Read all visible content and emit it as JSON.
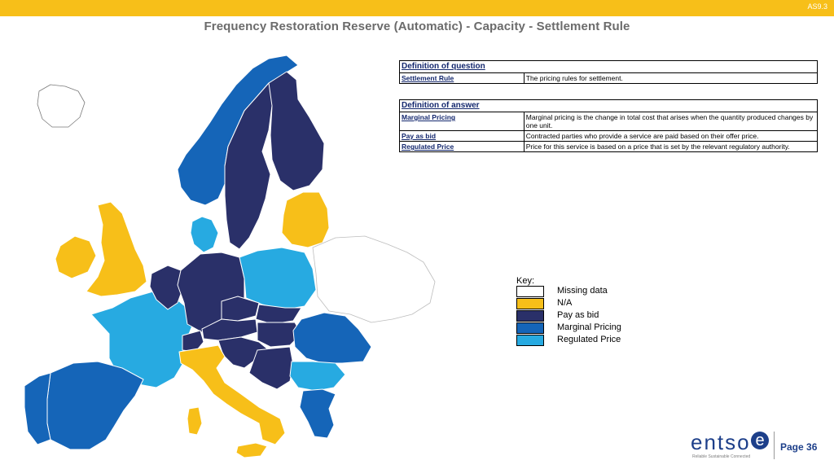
{
  "header": {
    "slide_code": "AS9.3",
    "title": "Frequency Restoration Reserve (Automatic) - Capacity - Settlement Rule"
  },
  "colors": {
    "accent_bar": "#f7bf19",
    "missing_data": "#ffffff",
    "na": "#f7bf19",
    "pay_as_bid": "#2a3069",
    "marginal_pricing": "#1565b8",
    "regulated_price": "#27aae1"
  },
  "question_table": {
    "heading": "Definition of question",
    "rows": [
      {
        "term": "Settlement Rule",
        "description": "The pricing rules for settlement."
      }
    ]
  },
  "answer_table": {
    "heading": "Definition of answer",
    "rows": [
      {
        "term": "Marginal Pricing",
        "description": "Marginal pricing is the change in total cost that arises when the quantity produced changes by one unit."
      },
      {
        "term": "Pay as bid",
        "description": "Contracted parties who provide a service are paid based on their offer price."
      },
      {
        "term": "Regulated Price",
        "description": "Price for this service is based on a price that is set by the relevant regulatory authority."
      }
    ]
  },
  "key": {
    "title": "Key:",
    "items": [
      {
        "label": "Missing data",
        "color_key": "missing_data"
      },
      {
        "label": "N/A",
        "color_key": "na"
      },
      {
        "label": "Pay as bid",
        "color_key": "pay_as_bid"
      },
      {
        "label": "Marginal Pricing",
        "color_key": "marginal_pricing"
      },
      {
        "label": "Regulated Price",
        "color_key": "regulated_price"
      }
    ]
  },
  "map_regions": [
    {
      "name": "iceland",
      "category": "missing_data"
    },
    {
      "name": "norway",
      "category": "marginal_pricing"
    },
    {
      "name": "sweden",
      "category": "pay_as_bid"
    },
    {
      "name": "finland",
      "category": "pay_as_bid"
    },
    {
      "name": "denmark",
      "category": "regulated_price"
    },
    {
      "name": "estonia-latvia-lithuania",
      "category": "na"
    },
    {
      "name": "great-britain",
      "category": "na"
    },
    {
      "name": "ireland",
      "category": "na"
    },
    {
      "name": "france",
      "category": "regulated_price"
    },
    {
      "name": "spain",
      "category": "marginal_pricing"
    },
    {
      "name": "portugal",
      "category": "marginal_pricing"
    },
    {
      "name": "benelux",
      "category": "pay_as_bid"
    },
    {
      "name": "germany",
      "category": "pay_as_bid"
    },
    {
      "name": "poland",
      "category": "regulated_price"
    },
    {
      "name": "czech-republic",
      "category": "pay_as_bid"
    },
    {
      "name": "slovakia",
      "category": "pay_as_bid"
    },
    {
      "name": "austria",
      "category": "pay_as_bid"
    },
    {
      "name": "switzerland",
      "category": "pay_as_bid"
    },
    {
      "name": "hungary",
      "category": "pay_as_bid"
    },
    {
      "name": "slovenia-croatia",
      "category": "pay_as_bid"
    },
    {
      "name": "bosnia-serbia-montenegro",
      "category": "pay_as_bid"
    },
    {
      "name": "italy",
      "category": "na"
    },
    {
      "name": "sardinia",
      "category": "na"
    },
    {
      "name": "sicily",
      "category": "na"
    },
    {
      "name": "romania",
      "category": "marginal_pricing"
    },
    {
      "name": "bulgaria",
      "category": "regulated_price"
    },
    {
      "name": "greece",
      "category": "marginal_pricing"
    },
    {
      "name": "belarus-ukraine",
      "category": "missing_data"
    }
  ],
  "logo": {
    "text": "entso",
    "letter": "e",
    "tagline": "Reliable Sustainable Connected"
  },
  "footer": {
    "page_label": "Page 36"
  }
}
